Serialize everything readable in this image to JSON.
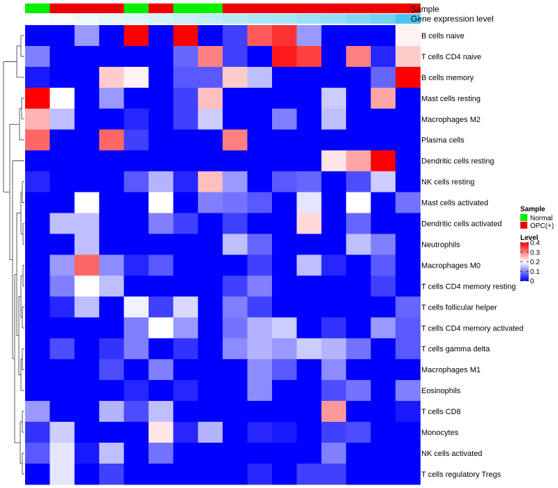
{
  "chart_data": {
    "type": "heatmap",
    "annotation_titles": [
      "Sample",
      "Gene expression level"
    ],
    "sample_groups": [
      "Normal",
      "OPC(+)",
      "OPC(+)",
      "OPC(+)",
      "Normal",
      "OPC(+)",
      "Normal",
      "Normal",
      "OPC(+)",
      "OPC(+)",
      "OPC(+)",
      "OPC(+)",
      "OPC(+)",
      "OPC(+)",
      "OPC(+)",
      "OPC(+)"
    ],
    "expression_levels": [
      0.02,
      0.05,
      0.1,
      0.15,
      0.2,
      0.25,
      0.3,
      0.35,
      0.4,
      0.45,
      0.5,
      0.55,
      0.6,
      0.7,
      0.8,
      1.0
    ],
    "rows": [
      "B cells naive",
      "T cells CD4 naive",
      "B cells memory",
      "Mast cells resting",
      "Macrophages M2",
      "Plasma cells",
      "Dendritic cells resting",
      "NK cells resting",
      "Mast cells activated",
      "Dendritic cells activated",
      "Neutrophils",
      "Macrophages M0",
      "T cells CD4 memory resting",
      "T cells follicular helper",
      "T cells CD4 memory activated",
      "T cells gamma delta",
      "Macrophages M1",
      "Eosinophils",
      "T cells CD8",
      "Monocytes",
      "NK cells activated",
      "T cells regulatory  Tregs"
    ],
    "values": [
      [
        0,
        0,
        0.12,
        0,
        0.4,
        0,
        0.4,
        0,
        0.05,
        0.33,
        0.36,
        0.12,
        0,
        0,
        0,
        0.21
      ],
      [
        0.1,
        0,
        0,
        0,
        0,
        0,
        0.08,
        0.3,
        0.05,
        0,
        0.38,
        0.35,
        0,
        0.3,
        0.03,
        0.24
      ],
      [
        0.02,
        0,
        0,
        0.24,
        0.21,
        0,
        0.07,
        0.07,
        0.24,
        0.15,
        0,
        0,
        0,
        0,
        0.08,
        0.4
      ],
      [
        0.4,
        0.2,
        0,
        0.12,
        0,
        0,
        0.05,
        0.25,
        0,
        0,
        0,
        0,
        0.16,
        0,
        0.27,
        0
      ],
      [
        0.26,
        0.15,
        0,
        0,
        0.03,
        0,
        0.05,
        0.16,
        0,
        0,
        0.1,
        0,
        0.15,
        0,
        0,
        0
      ],
      [
        0.32,
        0,
        0,
        0.32,
        0.05,
        0,
        0,
        0,
        0.3,
        0,
        0,
        0,
        0,
        0,
        0,
        0
      ],
      [
        0,
        0,
        0,
        0,
        0,
        0,
        0,
        0,
        0,
        0,
        0,
        0,
        0.22,
        0.27,
        0.4,
        0
      ],
      [
        0.03,
        0,
        0,
        0,
        0.07,
        0.14,
        0.03,
        0.25,
        0.12,
        0,
        0.07,
        0.08,
        0,
        0.06,
        0.16,
        0
      ],
      [
        0,
        0,
        0.2,
        0,
        0,
        0.2,
        0,
        0.1,
        0.09,
        0.07,
        0,
        0.18,
        0,
        0.2,
        0,
        0.09
      ],
      [
        0,
        0.15,
        0.15,
        0,
        0,
        0.1,
        0.05,
        0,
        0.05,
        0,
        0,
        0.23,
        0,
        0.08,
        0,
        0
      ],
      [
        0,
        0,
        0.15,
        0,
        0,
        0,
        0,
        0,
        0.15,
        0.08,
        0,
        0,
        0,
        0.15,
        0.1,
        0
      ],
      [
        0,
        0.12,
        0.32,
        0.11,
        0.03,
        0.07,
        0,
        0,
        0,
        0.05,
        0,
        0.15,
        0.03,
        0,
        0.07,
        0
      ],
      [
        0,
        0.1,
        0.2,
        0.15,
        0,
        0,
        0,
        0,
        0.05,
        0.1,
        0,
        0,
        0,
        0,
        0.05,
        0
      ],
      [
        0,
        0.03,
        0.15,
        0,
        0.19,
        0.05,
        0.17,
        0,
        0.1,
        0.05,
        0,
        0,
        0,
        0,
        0,
        0.08
      ],
      [
        0,
        0,
        0,
        0,
        0.1,
        0.2,
        0.12,
        0,
        0.09,
        0.14,
        0.16,
        0,
        0.04,
        0,
        0.12,
        0.07
      ],
      [
        0,
        0.06,
        0,
        0.04,
        0.1,
        0,
        0.04,
        0,
        0.11,
        0.14,
        0.12,
        0.16,
        0.14,
        0.09,
        0,
        0.07
      ],
      [
        0,
        0,
        0,
        0.06,
        0,
        0.1,
        0,
        0,
        0,
        0.11,
        0.07,
        0,
        0.11,
        0,
        0,
        0
      ],
      [
        0,
        0,
        0,
        0,
        0.03,
        0,
        0.03,
        0,
        0,
        0.11,
        0,
        0,
        0.06,
        0.09,
        0,
        0.1
      ],
      [
        0.12,
        0,
        0,
        0.14,
        0.06,
        0.15,
        0,
        0,
        0,
        0,
        0,
        0,
        0.28,
        0,
        0,
        0.02
      ],
      [
        0.04,
        0.16,
        0,
        0,
        0,
        0.22,
        0.03,
        0.14,
        0,
        0.03,
        0.02,
        0,
        0.05,
        0.06,
        0,
        0
      ],
      [
        0.07,
        0.18,
        0.02,
        0.15,
        0,
        0.09,
        0,
        0,
        0,
        0,
        0,
        0,
        0.1,
        0,
        0,
        0
      ],
      [
        0,
        0.18,
        0,
        0.05,
        0,
        0,
        0,
        0,
        0,
        0.03,
        0,
        0.05,
        0.05,
        0,
        0,
        0
      ]
    ],
    "legend_sample": {
      "title": "Sample",
      "entries": [
        {
          "label": "Normal",
          "color": "#00ee00"
        },
        {
          "label": "OPC(+)",
          "color": "#ee0000"
        }
      ]
    },
    "legend_level": {
      "title": "Level",
      "ticks": [
        0.4,
        0.3,
        0.2,
        0.1,
        0
      ],
      "vmin": 0,
      "vmax": 0.4
    },
    "colors": {
      "low": "#0000ff",
      "mid": "#ffffff",
      "high": "#ff0000",
      "normal": "#00ee00",
      "opc": "#ee0000",
      "expr_low": "#ffffff",
      "expr_high": "#4cc6ee"
    }
  }
}
